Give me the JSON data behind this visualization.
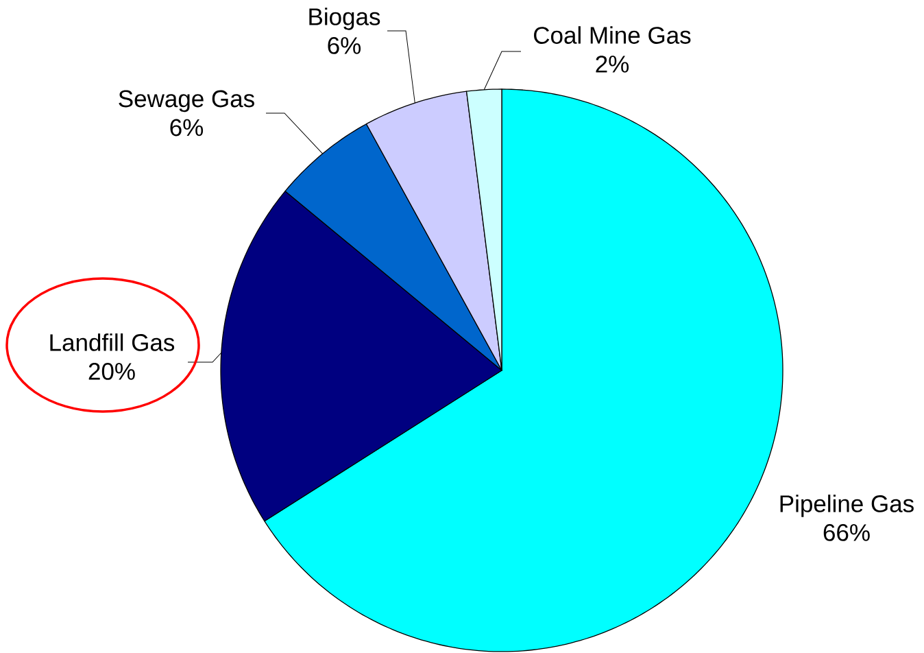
{
  "chart_data": {
    "type": "pie",
    "categories": [
      "Pipeline Gas",
      "Landfill Gas",
      "Sewage Gas",
      "Biogas",
      "Coal Mine Gas"
    ],
    "values": [
      66,
      20,
      6,
      6,
      2
    ],
    "value_labels": [
      "66%",
      "20%",
      "6%",
      "6%",
      "2%"
    ],
    "colors": [
      "#00ffff",
      "#000080",
      "#0066cc",
      "#ccccff",
      "#ccffff"
    ]
  }
}
